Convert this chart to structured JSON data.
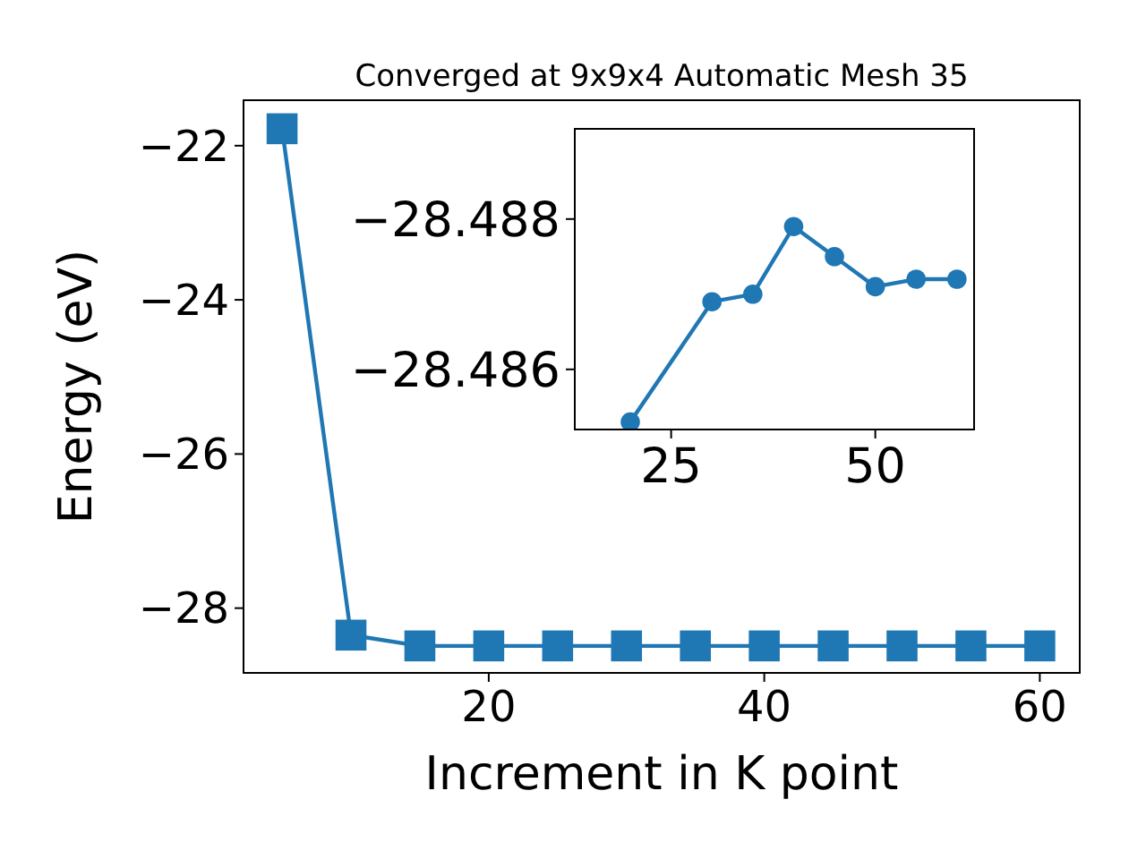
{
  "chart_data": [
    {
      "type": "line",
      "title": "Converged at 9x9x4 Automatic Mesh 35",
      "xlabel": "Increment in K point",
      "ylabel": "Energy (eV)",
      "x": [
        5,
        10,
        15,
        20,
        25,
        30,
        35,
        40,
        45,
        50,
        55,
        60
      ],
      "series": [
        {
          "color": "#1f77b4",
          "values": [
            -21.78,
            -28.35,
            -28.49,
            -28.49,
            -28.49,
            -28.49,
            -28.49,
            -28.49,
            -28.49,
            -28.49,
            -28.49,
            -28.49
          ]
        }
      ],
      "xlim": [
        2.2,
        62.9
      ],
      "ylim": [
        -28.84,
        -21.41
      ],
      "xticks": [
        20,
        40,
        60
      ],
      "yticks": [
        -28,
        -26,
        -24,
        -22
      ],
      "marker": "square",
      "line_style": "solid",
      "grid": false
    },
    {
      "type": "line",
      "x": [
        20,
        30,
        35,
        40,
        45,
        50,
        55,
        60
      ],
      "series": [
        {
          "color": "#1f77b4",
          "values": [
            -28.4853,
            -28.4869,
            -28.487,
            -28.4879,
            -28.4875,
            -28.4871,
            -28.4872,
            -28.4872
          ]
        }
      ],
      "xlim": [
        13.2,
        62.1
      ],
      "ylim": [
        -28.4852,
        -28.4892
      ],
      "xticks": [
        25,
        50
      ],
      "yticks": [
        -28.486,
        -28.488
      ],
      "marker": "circle",
      "line_style": "solid",
      "grid": false
    }
  ]
}
